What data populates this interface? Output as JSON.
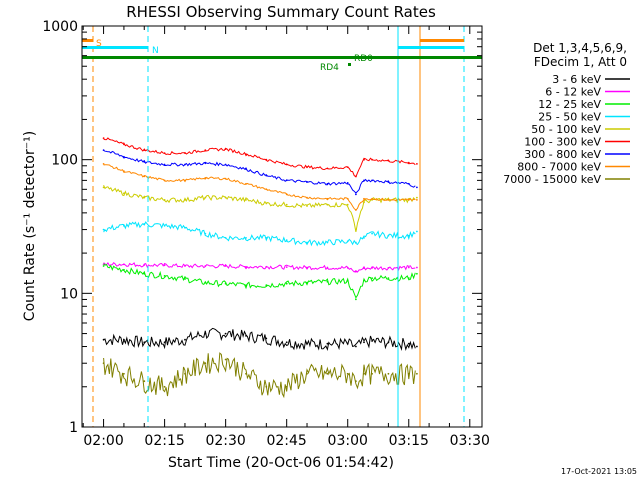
{
  "chart_data": {
    "type": "line",
    "title": "RHESSI Observing Summary Count Rates",
    "xlabel": "Start Time (20-Oct-06 01:54:42)",
    "ylabel": "Count Rate (s⁻¹ detector⁻¹)",
    "yscale": "log",
    "ylim": [
      1,
      1000
    ],
    "xlim": [
      "01:54:42",
      "03:33:00"
    ],
    "x_tick_labels": [
      "02:00",
      "02:15",
      "02:30",
      "02:45",
      "03:00",
      "03:15",
      "03:30"
    ],
    "y_tick_labels": [
      "1",
      "10",
      "100",
      "1000"
    ],
    "legend_header": [
      "Det 1,3,4,5,6,9,",
      "FDecim 1, Att 0"
    ],
    "legend_position": "right",
    "timestamp": "17-Oct-2021 13:05",
    "flags": [
      {
        "label": "S",
        "color": "#ff8800"
      },
      {
        "label": "N",
        "color": "#00e5ff"
      },
      {
        "label": "RD4",
        "color": "#008800"
      },
      {
        "label": "RD0",
        "color": "#008800"
      }
    ],
    "x": [
      "02:00",
      "02:05",
      "02:10",
      "02:15",
      "02:20",
      "02:25",
      "02:30",
      "02:35",
      "02:40",
      "02:45",
      "02:50",
      "02:55",
      "03:00",
      "03:02",
      "03:04",
      "03:06",
      "03:10",
      "03:15",
      "03:17"
    ],
    "series": [
      {
        "name": "3 - 6 keV",
        "color": "#000000",
        "values": [
          4.5,
          4.5,
          4.3,
          4.3,
          4.5,
          5.0,
          5.0,
          4.8,
          4.6,
          4.3,
          4.2,
          4.2,
          4.2,
          4.0,
          4.3,
          4.4,
          4.3,
          4.2,
          4.0
        ]
      },
      {
        "name": "6 - 12 keV",
        "color": "#ff00ff",
        "values": [
          16.5,
          16.5,
          16.3,
          16.2,
          16.0,
          16.0,
          16.0,
          15.8,
          15.8,
          15.7,
          15.6,
          15.6,
          15.5,
          14.5,
          15.4,
          15.5,
          15.5,
          15.6,
          15.6
        ]
      },
      {
        "name": "12 - 25 keV",
        "color": "#00ee00",
        "values": [
          16.0,
          15.0,
          14.0,
          13.5,
          12.8,
          12.0,
          11.8,
          11.5,
          11.5,
          11.8,
          12.0,
          12.2,
          12.4,
          9.0,
          12.5,
          13.0,
          13.0,
          13.0,
          14.0
        ]
      },
      {
        "name": "25 - 50 keV",
        "color": "#00e5ff",
        "values": [
          30.0,
          32.0,
          33.0,
          32.0,
          31.0,
          28.0,
          26.0,
          26.0,
          26.0,
          25.0,
          24.0,
          24.0,
          24.5,
          24.0,
          26.0,
          28.0,
          27.0,
          27.0,
          29.0
        ]
      },
      {
        "name": "50 - 100 keV",
        "color": "#cccc00",
        "values": [
          62.0,
          56.0,
          52.0,
          50.0,
          50.0,
          52.0,
          52.0,
          50.0,
          47.0,
          46.0,
          45.0,
          46.0,
          46.0,
          30.0,
          48.0,
          50.0,
          50.0,
          50.0,
          52.0
        ]
      },
      {
        "name": "100 - 300 keV",
        "color": "#ff0000",
        "values": [
          145.0,
          130.0,
          118.0,
          112.0,
          112.0,
          118.0,
          120.0,
          110.0,
          100.0,
          92.0,
          88.0,
          86.0,
          88.0,
          75.0,
          100.0,
          100.0,
          98.0,
          95.0,
          93.0
        ]
      },
      {
        "name": "300 - 800 keV",
        "color": "#0000ff",
        "values": [
          118.0,
          105.0,
          96.0,
          92.0,
          92.0,
          94.0,
          92.0,
          85.0,
          76.0,
          70.0,
          68.0,
          66.0,
          67.0,
          55.0,
          70.0,
          70.0,
          68.0,
          66.0,
          62.0
        ]
      },
      {
        "name": "800 - 7000 keV",
        "color": "#ff8800",
        "values": [
          93.0,
          82.0,
          75.0,
          70.0,
          70.0,
          73.0,
          72.0,
          66.0,
          60.0,
          55.0,
          52.0,
          51.0,
          51.0,
          42.0,
          51.0,
          51.0,
          50.0,
          50.0,
          50.0
        ]
      },
      {
        "name": "7000 - 15000 keV",
        "color": "#808000",
        "values": [
          3.0,
          2.5,
          2.2,
          2.0,
          2.5,
          3.0,
          3.2,
          2.5,
          2.0,
          2.0,
          2.5,
          2.5,
          2.5,
          2.2,
          2.5,
          2.5,
          2.5,
          2.5,
          2.5
        ]
      }
    ]
  }
}
